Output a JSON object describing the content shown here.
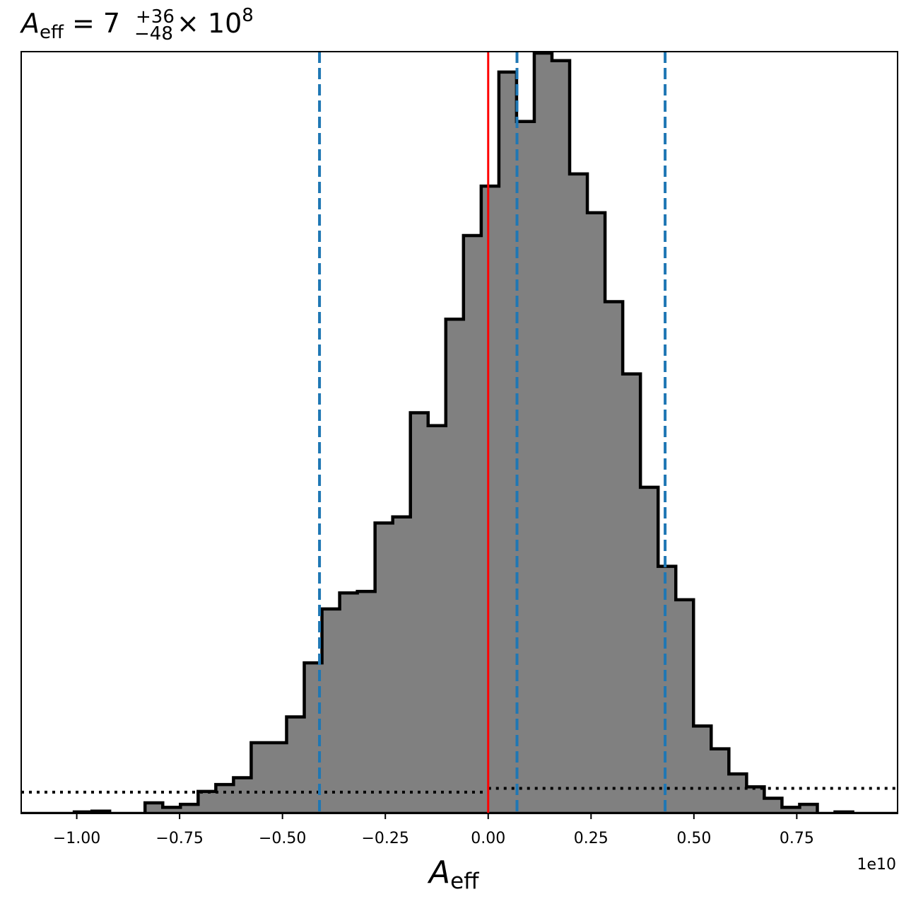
{
  "chart_data": {
    "type": "bar",
    "subtype": "step-histogram",
    "title": {
      "base": "A",
      "base_sub": "eff",
      "equals": " = 7",
      "sup": "+36",
      "sub": "−48",
      "times": " × 10",
      "exp": "8"
    },
    "xlabel": {
      "base": "A",
      "sub": "eff"
    },
    "ylabel": "",
    "x_offset_label": "1e10",
    "xlim": [
      -1.135,
      0.995
    ],
    "ylim": [
      0,
      1.0
    ],
    "xticks": [
      -1.0,
      -0.75,
      -0.5,
      -0.25,
      0.0,
      0.25,
      0.5,
      0.75
    ],
    "xtick_labels": [
      "−1.00",
      "−0.75",
      "−0.50",
      "−0.25",
      "0.00",
      "0.25",
      "0.50",
      "0.75"
    ],
    "y_tick_labels_shown": false,
    "histogram": {
      "bin_edges": [
        -1.135,
        -1.092,
        -1.049,
        -1.006,
        -0.963,
        -0.92,
        -0.877,
        -0.834,
        -0.791,
        -0.748,
        -0.705,
        -0.662,
        -0.619,
        -0.576,
        -0.533,
        -0.49,
        -0.447,
        -0.404,
        -0.361,
        -0.318,
        -0.275,
        -0.232,
        -0.189,
        -0.146,
        -0.103,
        -0.06,
        -0.017,
        0.026,
        0.069,
        0.112,
        0.155,
        0.198,
        0.241,
        0.284,
        0.327,
        0.37,
        0.413,
        0.456,
        0.499,
        0.542,
        0.585,
        0.628,
        0.671,
        0.714,
        0.757,
        0.8,
        0.843,
        0.886,
        0.929,
        0.995
      ],
      "heights": [
        0.0,
        0.0,
        0.0,
        0.002,
        0.003,
        0.0,
        0.0,
        0.014,
        0.008,
        0.012,
        0.029,
        0.038,
        0.047,
        0.093,
        0.093,
        0.127,
        0.198,
        0.269,
        0.29,
        0.292,
        0.382,
        0.39,
        0.527,
        0.51,
        0.65,
        0.76,
        0.825,
        0.975,
        0.91,
        1.0,
        0.99,
        0.841,
        0.79,
        0.673,
        0.578,
        0.429,
        0.325,
        0.281,
        0.115,
        0.085,
        0.052,
        0.035,
        0.02,
        0.008,
        0.012,
        0.0,
        0.002,
        0.0,
        0.0
      ],
      "fill_color": "#808080",
      "edge_color": "#000000"
    },
    "reference_lines": [
      {
        "name": "truth",
        "x": 0.0,
        "color": "#ff0000",
        "style": "solid"
      }
    ],
    "quantile_lines": [
      {
        "name": "lower",
        "x": -0.41,
        "color": "#1f77b4",
        "style": "dashed"
      },
      {
        "name": "median",
        "x": 0.07,
        "color": "#1f77b4",
        "style": "dashed"
      },
      {
        "name": "upper",
        "x": 0.43,
        "color": "#1f77b4",
        "style": "dashed"
      }
    ],
    "prior_line": {
      "color": "#000000",
      "style": "dotted",
      "segments": [
        {
          "x0": -1.135,
          "x1": 0.0,
          "y": 0.028
        },
        {
          "x0": 0.0,
          "x1": 0.995,
          "y": 0.033
        }
      ]
    },
    "grid": false,
    "legend": "none"
  }
}
